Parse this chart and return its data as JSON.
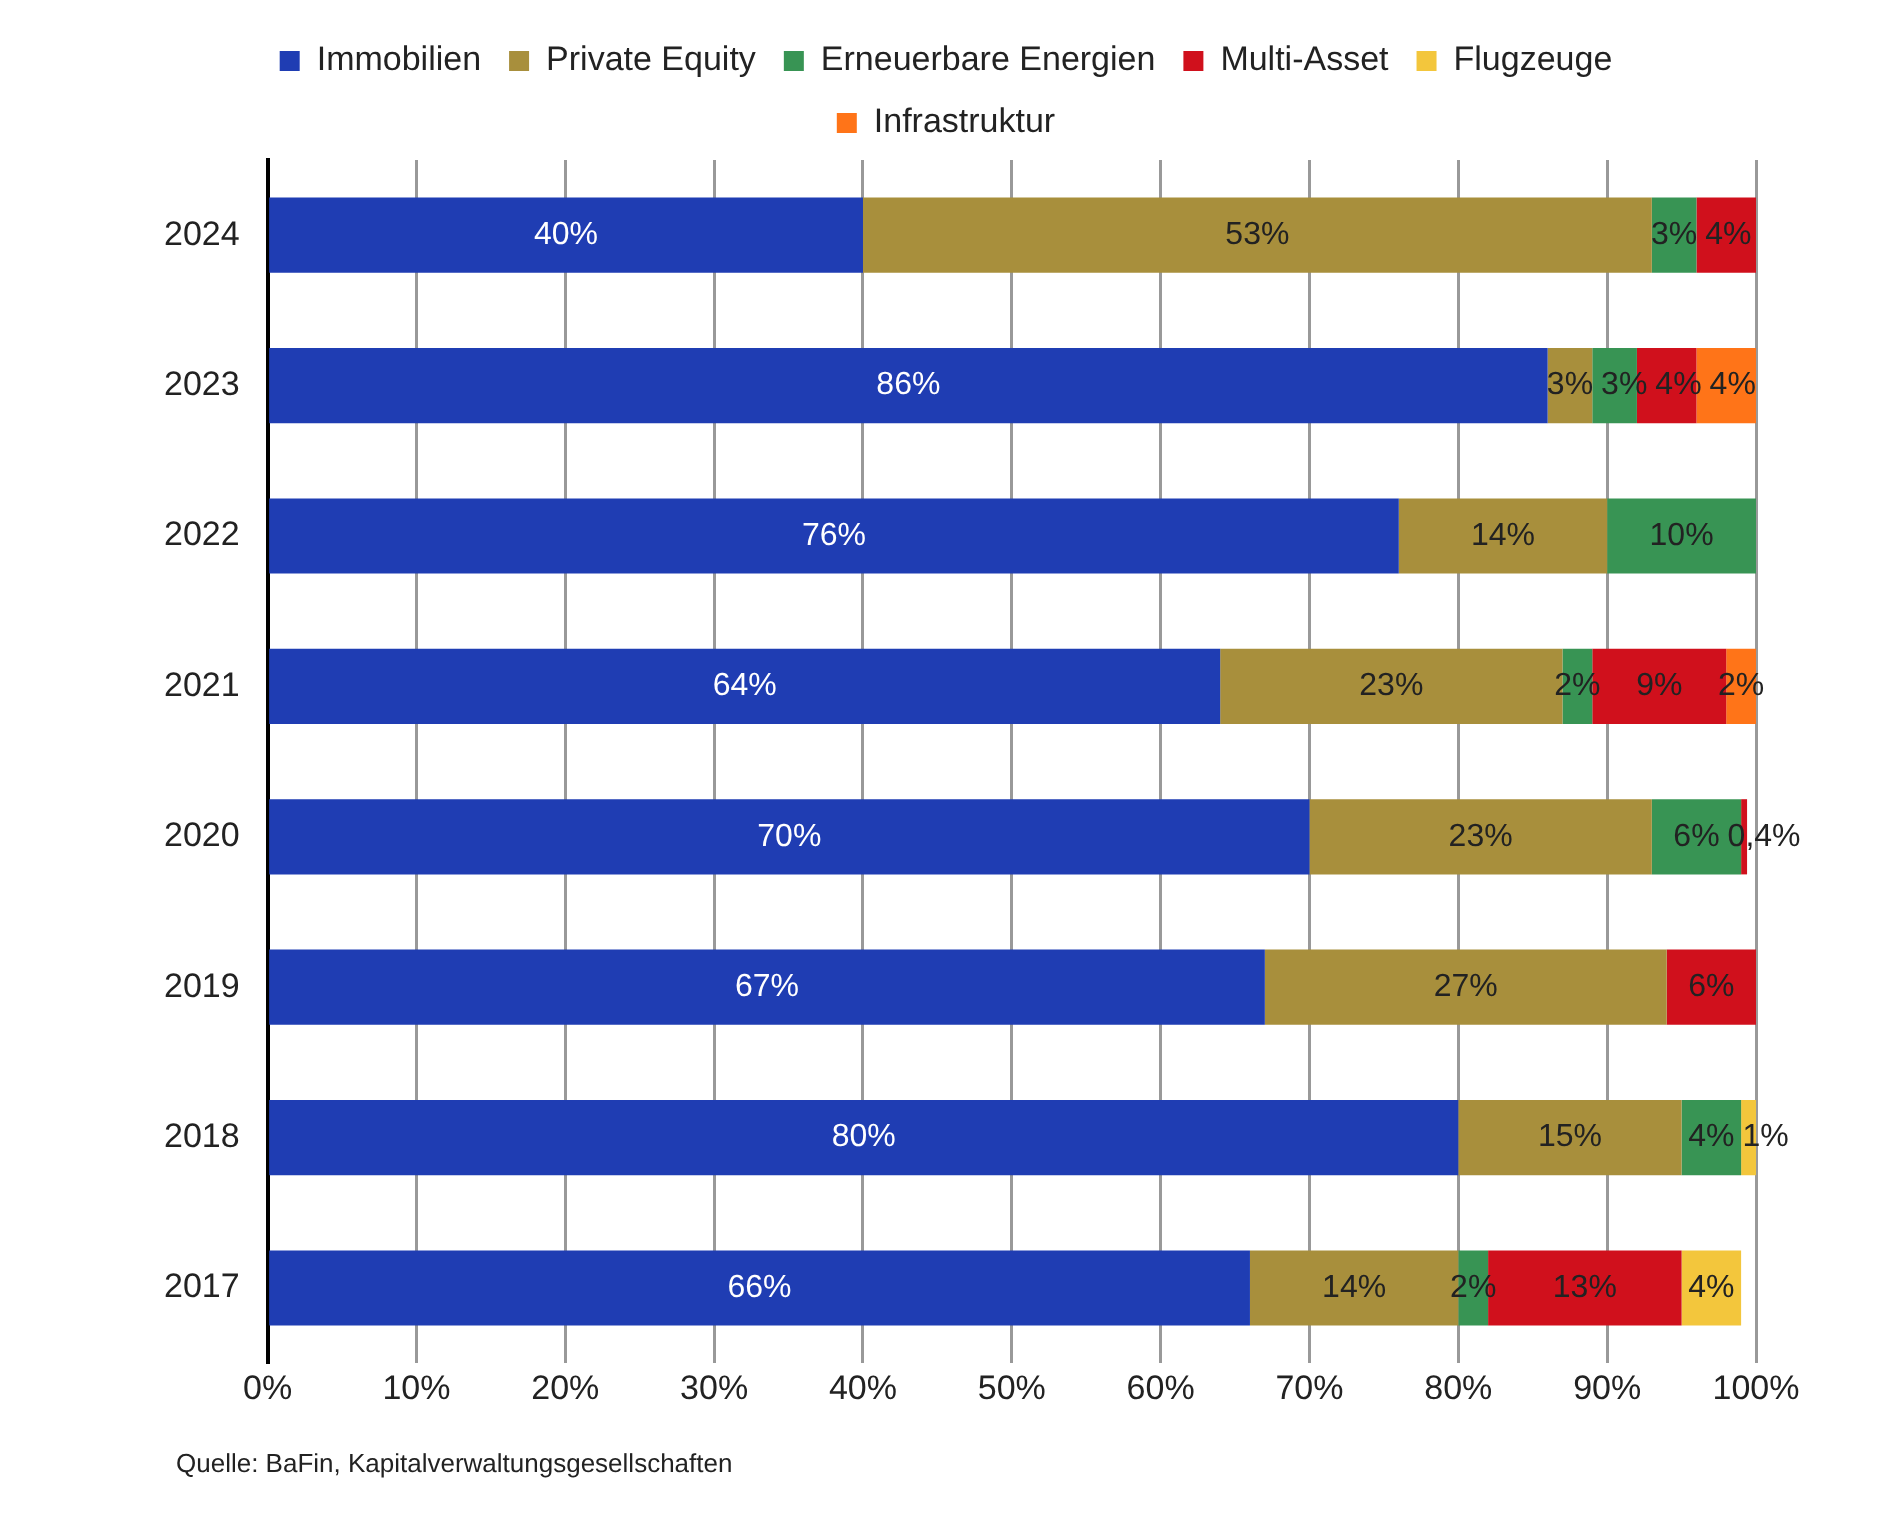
{
  "chart_data": {
    "type": "bar",
    "orientation": "horizontal",
    "stacked": true,
    "categories": [
      "2024",
      "2023",
      "2022",
      "2021",
      "2020",
      "2019",
      "2018",
      "2017"
    ],
    "series": [
      {
        "name": "Immobilien",
        "color": "#1f3db3",
        "values": [
          40,
          86,
          76,
          64,
          70,
          67,
          80,
          66
        ],
        "value_labels": [
          "40%",
          "86%",
          "76%",
          "64%",
          "70%",
          "67%",
          "80%",
          "66%"
        ]
      },
      {
        "name": "Private Equity",
        "color": "#a88f3c",
        "values": [
          53,
          3,
          14,
          23,
          23,
          27,
          15,
          14
        ],
        "value_labels": [
          "53%",
          "3%",
          "14%",
          "23%",
          "23%",
          "27%",
          "15%",
          "14%"
        ]
      },
      {
        "name": "Erneuerbare Energien",
        "color": "#389454",
        "values": [
          3,
          3,
          10,
          2,
          6,
          null,
          4,
          2
        ],
        "value_labels": [
          "3%",
          "3%",
          "10%",
          "2%",
          "6%",
          null,
          "4%",
          "2%"
        ]
      },
      {
        "name": "Multi-Asset",
        "color": "#d0101c",
        "values": [
          4,
          4,
          null,
          9,
          0.4,
          6,
          null,
          13
        ],
        "value_labels": [
          "4%",
          "4%",
          null,
          "9%",
          "0,4%",
          "6%",
          null,
          "13%"
        ]
      },
      {
        "name": "Flugzeuge",
        "color": "#f3c63c",
        "values": [
          null,
          null,
          null,
          null,
          null,
          null,
          1,
          4
        ],
        "value_labels": [
          null,
          null,
          null,
          null,
          null,
          null,
          "1%",
          "4%"
        ]
      },
      {
        "name": "Infrastruktur",
        "color": "#ff7418",
        "values": [
          null,
          4,
          null,
          2,
          null,
          null,
          null,
          null
        ],
        "value_labels": [
          null,
          "4%",
          null,
          "2%",
          null,
          null,
          null,
          null
        ]
      }
    ],
    "xlim": [
      0,
      100
    ],
    "xticks": [
      {
        "value": 0,
        "label": "0%"
      },
      {
        "value": 10,
        "label": "10%"
      },
      {
        "value": 20,
        "label": "20%"
      },
      {
        "value": 30,
        "label": "30%"
      },
      {
        "value": 40,
        "label": "40%"
      },
      {
        "value": 50,
        "label": "50%"
      },
      {
        "value": 60,
        "label": "60%"
      },
      {
        "value": 70,
        "label": "70%"
      },
      {
        "value": 80,
        "label": "80%"
      },
      {
        "value": 90,
        "label": "90%"
      },
      {
        "value": 100,
        "label": "100%"
      }
    ],
    "grid": "x",
    "legend": "top",
    "annotations": [
      "Quelle: BaFin, Kapitalverwaltungsgesellschaften"
    ]
  }
}
